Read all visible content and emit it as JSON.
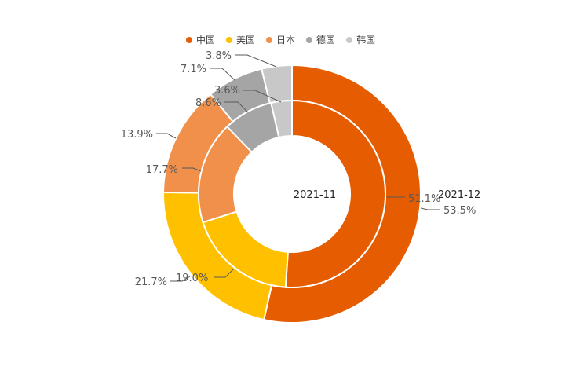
{
  "chart_data": {
    "type": "pie",
    "subtype": "doughnut-multi-ring",
    "categories": [
      "中国",
      "美国",
      "日本",
      "德国",
      "韩国"
    ],
    "colors": [
      "#E65C00",
      "#FFC000",
      "#F0904A",
      "#A5A5A5",
      "#C8C8C8"
    ],
    "series": [
      {
        "name": "2021-11",
        "values": [
          51.1,
          19.0,
          17.7,
          8.6,
          3.6
        ],
        "labels": [
          "51.1%",
          "19.0%",
          "17.7%",
          "8.6%",
          "3.6%"
        ]
      },
      {
        "name": "2021-12",
        "values": [
          53.5,
          21.7,
          13.9,
          7.1,
          3.8
        ],
        "labels": [
          "53.5%",
          "21.7%",
          "13.9%",
          "7.1%",
          "3.8%"
        ]
      }
    ],
    "legend_position": "top"
  }
}
